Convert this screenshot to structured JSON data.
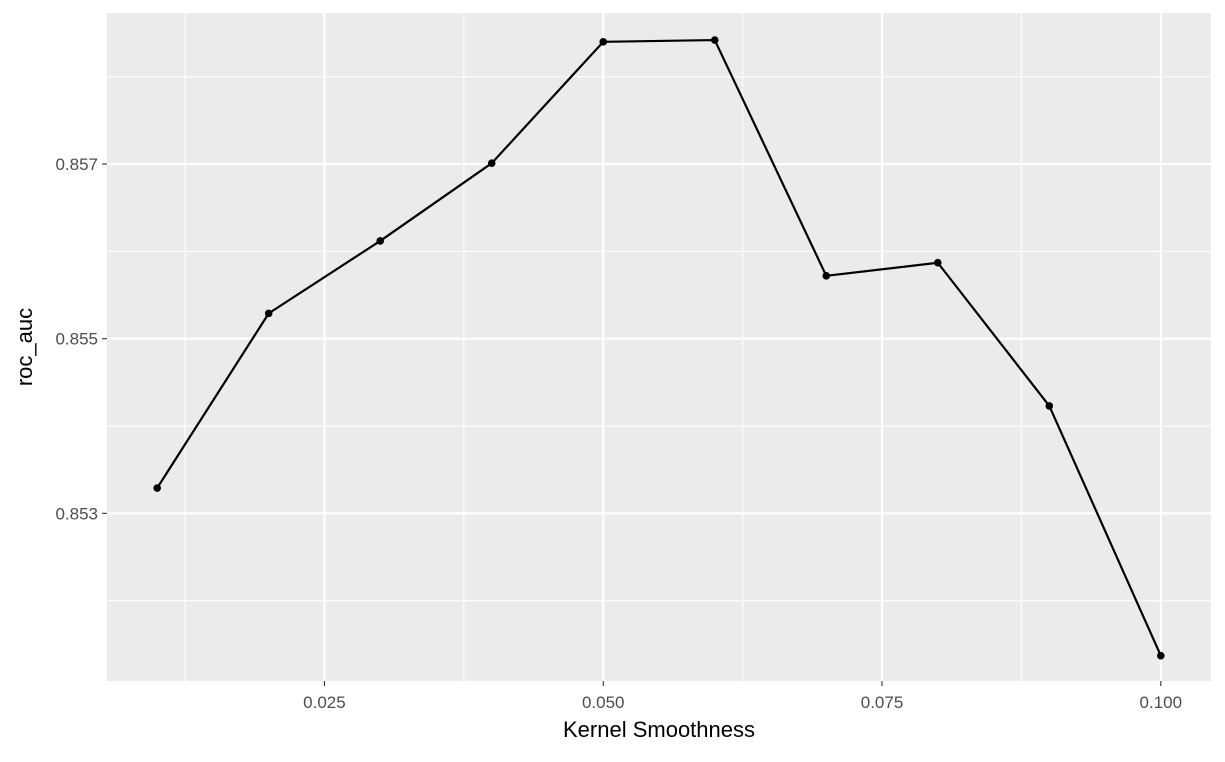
{
  "chart_data": {
    "type": "line",
    "title": "",
    "xlabel": "Kernel Smoothness",
    "ylabel": "roc_auc",
    "xlim": [
      0.0055,
      0.1045
    ],
    "ylim": [
      0.85108,
      0.85873
    ],
    "x_ticks": [
      0.025,
      0.05,
      0.075,
      0.1
    ],
    "x_tick_labels": [
      "0.025",
      "0.050",
      "0.075",
      "0.100"
    ],
    "x_minor_ticks": [
      0.0125,
      0.0375,
      0.0625,
      0.0875
    ],
    "y_ticks": [
      0.853,
      0.855,
      0.857
    ],
    "y_tick_labels": [
      "0.853",
      "0.855",
      "0.857"
    ],
    "y_minor_ticks": [
      0.852,
      0.854,
      0.856,
      0.858
    ],
    "grid": true,
    "series": [
      {
        "x": [
          0.01,
          0.02,
          0.03,
          0.04,
          0.05,
          0.06,
          0.07,
          0.08,
          0.09,
          0.1
        ],
        "y": [
          0.85329,
          0.85529,
          0.85612,
          0.85701,
          0.8584,
          0.85842,
          0.85572,
          0.85587,
          0.85423,
          0.85137
        ],
        "color": "#000000"
      }
    ]
  }
}
